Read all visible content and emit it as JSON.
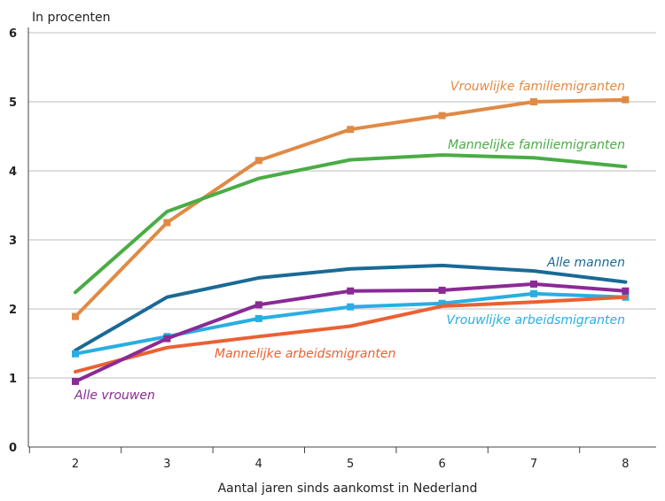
{
  "chart_data": {
    "type": "line",
    "ylabel": "In procenten",
    "xlabel": "Aantal jaren sinds aankomst in Nederland",
    "x": [
      2,
      3,
      4,
      5,
      6,
      7,
      8
    ],
    "ylim": [
      0,
      6
    ],
    "yticks": [
      0,
      1,
      2,
      3,
      4,
      5,
      6
    ],
    "grid": true,
    "series": [
      {
        "name": "Vrouwlijke familiemigranten",
        "color": "#e08a44",
        "marker": "square",
        "values": [
          1.89,
          3.25,
          4.15,
          4.6,
          4.8,
          5.0,
          5.03
        ]
      },
      {
        "name": "Mannelijke familiemigranten",
        "color": "#4aac45",
        "marker": "none",
        "values": [
          2.24,
          3.41,
          3.89,
          4.16,
          4.23,
          4.19,
          4.06
        ]
      },
      {
        "name": "Alle mannen",
        "color": "#1a6a95",
        "marker": "none",
        "values": [
          1.4,
          2.17,
          2.45,
          2.58,
          2.63,
          2.55,
          2.39
        ]
      },
      {
        "name": "Vrouwlijke arbeidsmigranten",
        "color": "#29aee3",
        "marker": "square",
        "values": [
          1.35,
          1.6,
          1.86,
          2.03,
          2.08,
          2.22,
          2.17
        ]
      },
      {
        "name": "Mannelijke arbeidsmigranten",
        "color": "#ea6132",
        "marker": "none",
        "values": [
          1.09,
          1.44,
          1.6,
          1.75,
          2.04,
          2.1,
          2.17
        ]
      },
      {
        "name": "Alle vrouwen",
        "color": "#8a2a95",
        "marker": "square",
        "values": [
          0.95,
          1.57,
          2.06,
          2.26,
          2.27,
          2.36,
          2.26
        ]
      }
    ]
  }
}
